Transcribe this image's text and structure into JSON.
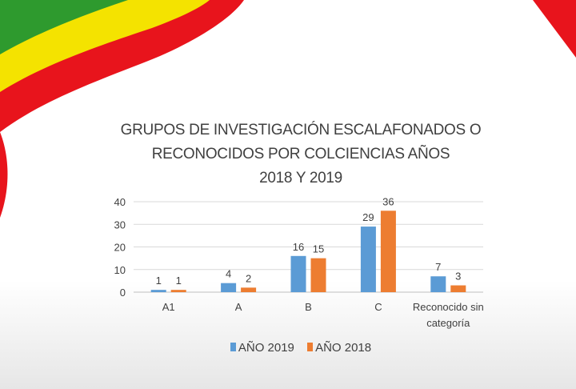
{
  "colors": {
    "series_2019": "#5b9bd5",
    "series_2018": "#ed7d31",
    "flag_green": "#2e9a2e",
    "flag_yellow": "#f4e300",
    "flag_red": "#e8141c"
  },
  "chart_data": {
    "type": "bar",
    "title_lines": [
      "GRUPOS DE INVESTIGACIÓN ESCALAFONADOS O",
      "RECONOCIDOS POR COLCIENCIAS AÑOS",
      "2018 Y 2019"
    ],
    "categories": [
      "A1",
      "A",
      "B",
      "C",
      "Reconocido sin categoría"
    ],
    "series": [
      {
        "name": "AÑO 2019",
        "values": [
          1,
          4,
          16,
          29,
          7
        ],
        "color": "#5b9bd5"
      },
      {
        "name": "AÑO 2018",
        "values": [
          1,
          2,
          15,
          36,
          3
        ],
        "color": "#ed7d31"
      }
    ],
    "y_ticks": [
      0,
      10,
      20,
      30,
      40
    ],
    "ylim": [
      0,
      40
    ],
    "grid": true,
    "data_labels": true,
    "legend_position": "bottom"
  }
}
